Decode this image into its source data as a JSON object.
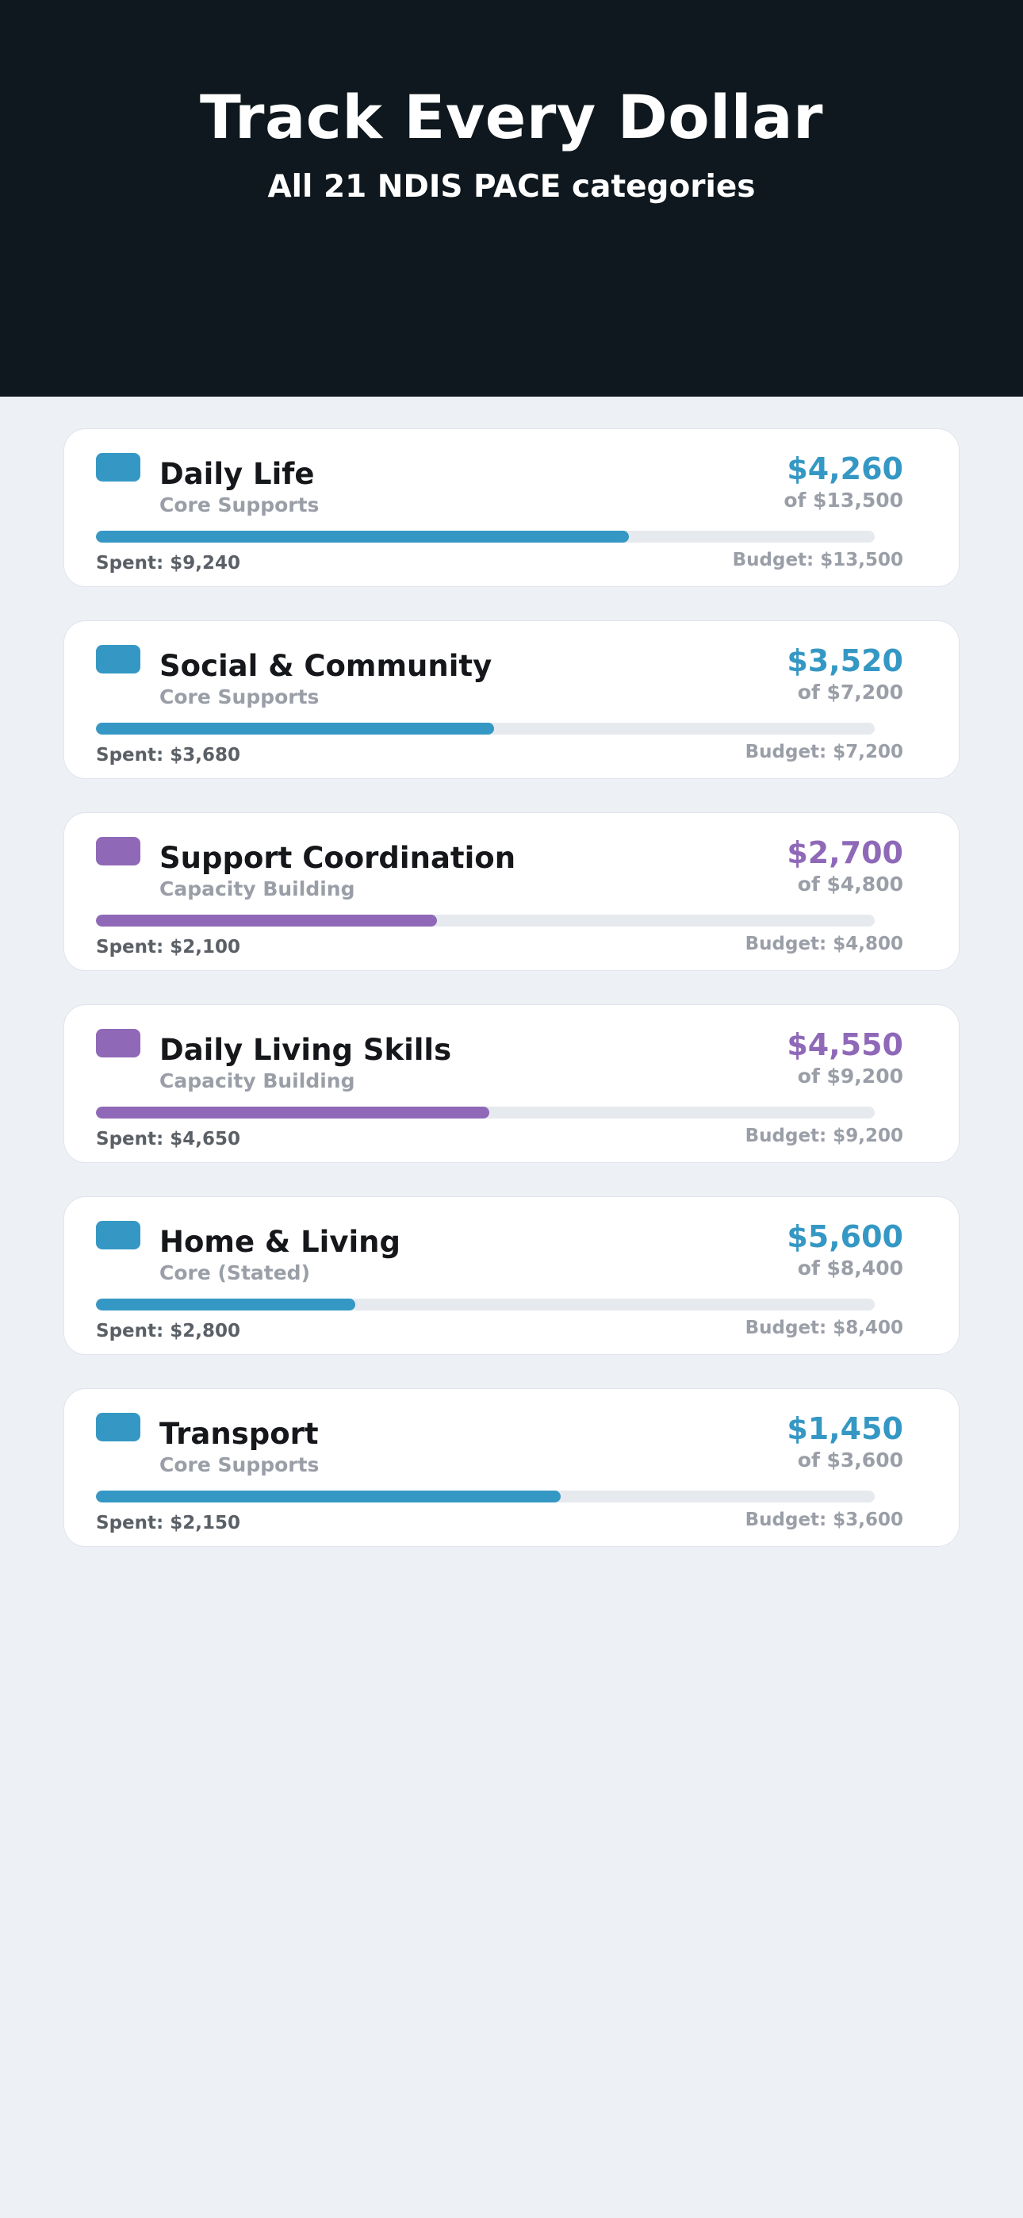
{
  "hero": {
    "title": "Track Every Dollar",
    "subtitle": "All 21 NDIS PACE categories"
  },
  "colors": {
    "core": "#3598c4",
    "capacity": "#8f69b8",
    "hero_bg": "#0e181e",
    "page_bg": "#edf1f5"
  },
  "categories": [
    {
      "name": "Daily Life",
      "type": "Core Supports",
      "color": "#3598c4",
      "remaining": "$4,260",
      "of_total": "of $13,500",
      "spent": "Spent: $9,240",
      "budget": "Budget: $13,500",
      "progress": 0.684
    },
    {
      "name": "Social & Community",
      "type": "Core Supports",
      "color": "#3598c4",
      "remaining": "$3,520",
      "of_total": "of $7,200",
      "spent": "Spent: $3,680",
      "budget": "Budget: $7,200",
      "progress": 0.511
    },
    {
      "name": "Support Coordination",
      "type": "Capacity Building",
      "color": "#8f69b8",
      "remaining": "$2,700",
      "of_total": "of $4,800",
      "spent": "Spent: $2,100",
      "budget": "Budget: $4,800",
      "progress": 0.4375
    },
    {
      "name": "Daily Living Skills",
      "type": "Capacity Building",
      "color": "#8f69b8",
      "remaining": "$4,550",
      "of_total": "of $9,200",
      "spent": "Spent: $4,650",
      "budget": "Budget: $9,200",
      "progress": 0.505
    },
    {
      "name": "Home & Living",
      "type": "Core (Stated)",
      "color": "#3598c4",
      "remaining": "$5,600",
      "of_total": "of $8,400",
      "spent": "Spent: $2,800",
      "budget": "Budget: $8,400",
      "progress": 0.333
    },
    {
      "name": "Transport",
      "type": "Core Supports",
      "color": "#3598c4",
      "remaining": "$1,450",
      "of_total": "of $3,600",
      "spent": "Spent: $2,150",
      "budget": "Budget: $3,600",
      "progress": 0.597
    }
  ]
}
